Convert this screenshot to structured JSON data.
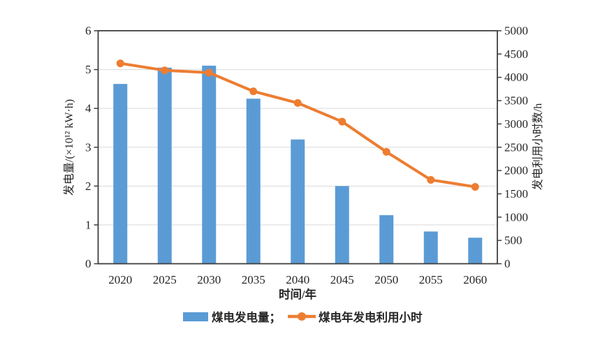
{
  "figure": {
    "background": "#ffffff"
  },
  "colors": {
    "bar": "#5b9bd5",
    "line": "#ed7d31",
    "grid": "#d9d9d9",
    "axis": "#3f3f3f",
    "text": "#262626"
  },
  "chart_data": {
    "type": "bar+line",
    "categories": [
      "2020",
      "2025",
      "2030",
      "2035",
      "2040",
      "2045",
      "2050",
      "2055",
      "2060"
    ],
    "series": [
      {
        "name": "煤电发电量",
        "type": "bar",
        "axis": "left",
        "color": "#5b9bd5",
        "values": [
          4.63,
          5.05,
          5.1,
          4.25,
          3.2,
          2.0,
          1.25,
          0.83,
          0.67
        ]
      },
      {
        "name": "煤电年发电利用小时",
        "type": "line",
        "axis": "right",
        "color": "#ed7d31",
        "values": [
          4300,
          4150,
          4100,
          3700,
          3450,
          3050,
          2400,
          1800,
          1650
        ]
      }
    ],
    "xlabel": "时间/年",
    "ylabel_left": "发电量/(×10¹² kW·h)",
    "ylabel_right": "发电利用小时数/h",
    "ylim_left": [
      0,
      6
    ],
    "ylim_right": [
      0,
      5000
    ],
    "yticks_left": [
      0,
      1,
      2,
      3,
      4,
      5,
      6
    ],
    "yticks_right": [
      0,
      500,
      1000,
      1500,
      2000,
      2500,
      3000,
      3500,
      4000,
      4500,
      5000
    ],
    "grid": true,
    "legend_position": "bottom",
    "legend": [
      "煤电发电量；",
      "煤电年发电利用小时"
    ]
  }
}
